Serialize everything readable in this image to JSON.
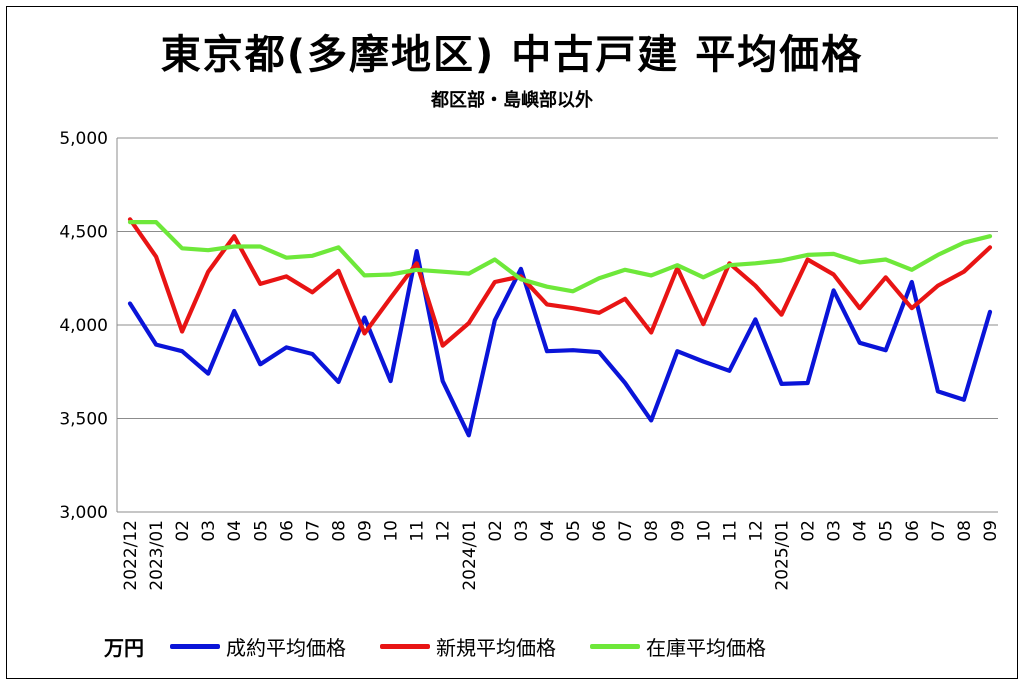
{
  "title": "東京都(多摩地区) 中古戸建 平均価格",
  "subtitle": "都区部・島嶼部以外",
  "unit_label": "万円",
  "colors": {
    "成約": "#0a14d8",
    "新規": "#e81414",
    "在庫": "#6ee83a"
  },
  "chart_data": {
    "type": "line",
    "title": "東京都(多摩地区) 中古戸建 平均価格",
    "subtitle": "都区部・島嶼部以外",
    "ylabel": "万円",
    "ylim": [
      3000,
      5000
    ],
    "yticks": [
      "3,000",
      "3,500",
      "4,000",
      "4,500",
      "5,000"
    ],
    "grid": true,
    "legend_position": "bottom",
    "categories": [
      "2022/12",
      "2023/01",
      "02",
      "03",
      "04",
      "05",
      "06",
      "07",
      "08",
      "09",
      "10",
      "11",
      "12",
      "2024/01",
      "02",
      "03",
      "04",
      "05",
      "06",
      "07",
      "08",
      "09",
      "10",
      "11",
      "12",
      "2025/01",
      "02",
      "03",
      "04",
      "05",
      "06",
      "07",
      "08",
      "09"
    ],
    "series": [
      {
        "name": "成約平均価格",
        "color": "#0a14d8",
        "values": [
          4115,
          3895,
          3860,
          3740,
          4075,
          3790,
          3880,
          3845,
          3695,
          4040,
          3700,
          4395,
          3700,
          3410,
          4025,
          4300,
          3860,
          3865,
          3855,
          3690,
          3490,
          3860,
          3805,
          3755,
          4030,
          3685,
          3690,
          4185,
          3905,
          3865,
          4230,
          3645,
          3600,
          4070
        ]
      },
      {
        "name": "新規平均価格",
        "color": "#e81414",
        "values": [
          4565,
          4365,
          3965,
          4285,
          4475,
          4220,
          4260,
          4175,
          4290,
          3955,
          4145,
          4330,
          3890,
          4010,
          4230,
          4260,
          4110,
          4090,
          4065,
          4140,
          3960,
          4305,
          4005,
          4330,
          4210,
          4055,
          4350,
          4270,
          4090,
          4255,
          4090,
          4210,
          4285,
          4415
        ]
      },
      {
        "name": "在庫平均価格",
        "color": "#6ee83a",
        "values": [
          4550,
          4550,
          4410,
          4400,
          4420,
          4420,
          4360,
          4370,
          4415,
          4265,
          4270,
          4295,
          4285,
          4275,
          4350,
          4245,
          4205,
          4180,
          4250,
          4295,
          4265,
          4320,
          4255,
          4320,
          4330,
          4345,
          4375,
          4380,
          4335,
          4350,
          4295,
          4375,
          4440,
          4475
        ]
      }
    ]
  }
}
